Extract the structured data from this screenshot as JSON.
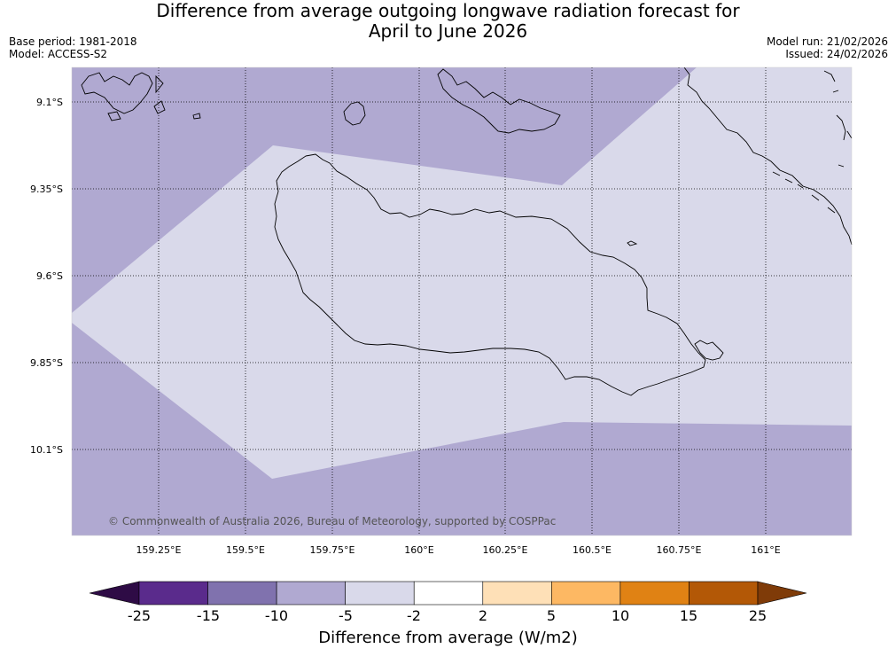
{
  "title": {
    "line1": "Difference from average outgoing longwave radiation forecast for",
    "line2": "April to June 2026"
  },
  "meta": {
    "base_period": "Base period: 1981-2018",
    "model": "Model: ACCESS-S2",
    "model_run": "Model run: 21/02/2026",
    "issued": "Issued: 24/02/2026"
  },
  "map": {
    "lat_labels": [
      "9.1°S",
      "9.35°S",
      "9.6°S",
      "9.85°S",
      "10.1°S"
    ],
    "lon_labels": [
      "159.25°E",
      "159.5°E",
      "159.75°E",
      "160°E",
      "160.25°E",
      "160.5°E",
      "160.75°E",
      "161°E"
    ],
    "copyright": "© Commonwealth of Australia 2026, Bureau of Meteorology, supported by COSPPac"
  },
  "colorbar": {
    "title": "Difference from average (W/m2)",
    "ticks": [
      "-25",
      "-15",
      "-10",
      "-5",
      "-2",
      "2",
      "5",
      "10",
      "15",
      "25"
    ],
    "colors": [
      "#2e0b45",
      "#5a2b8c",
      "#8072ae",
      "#b0a9d1",
      "#d9d9ea",
      "#ffffff",
      "#fee0b7",
      "#fdb863",
      "#e08214",
      "#b35806",
      "#7f3b08"
    ]
  }
}
